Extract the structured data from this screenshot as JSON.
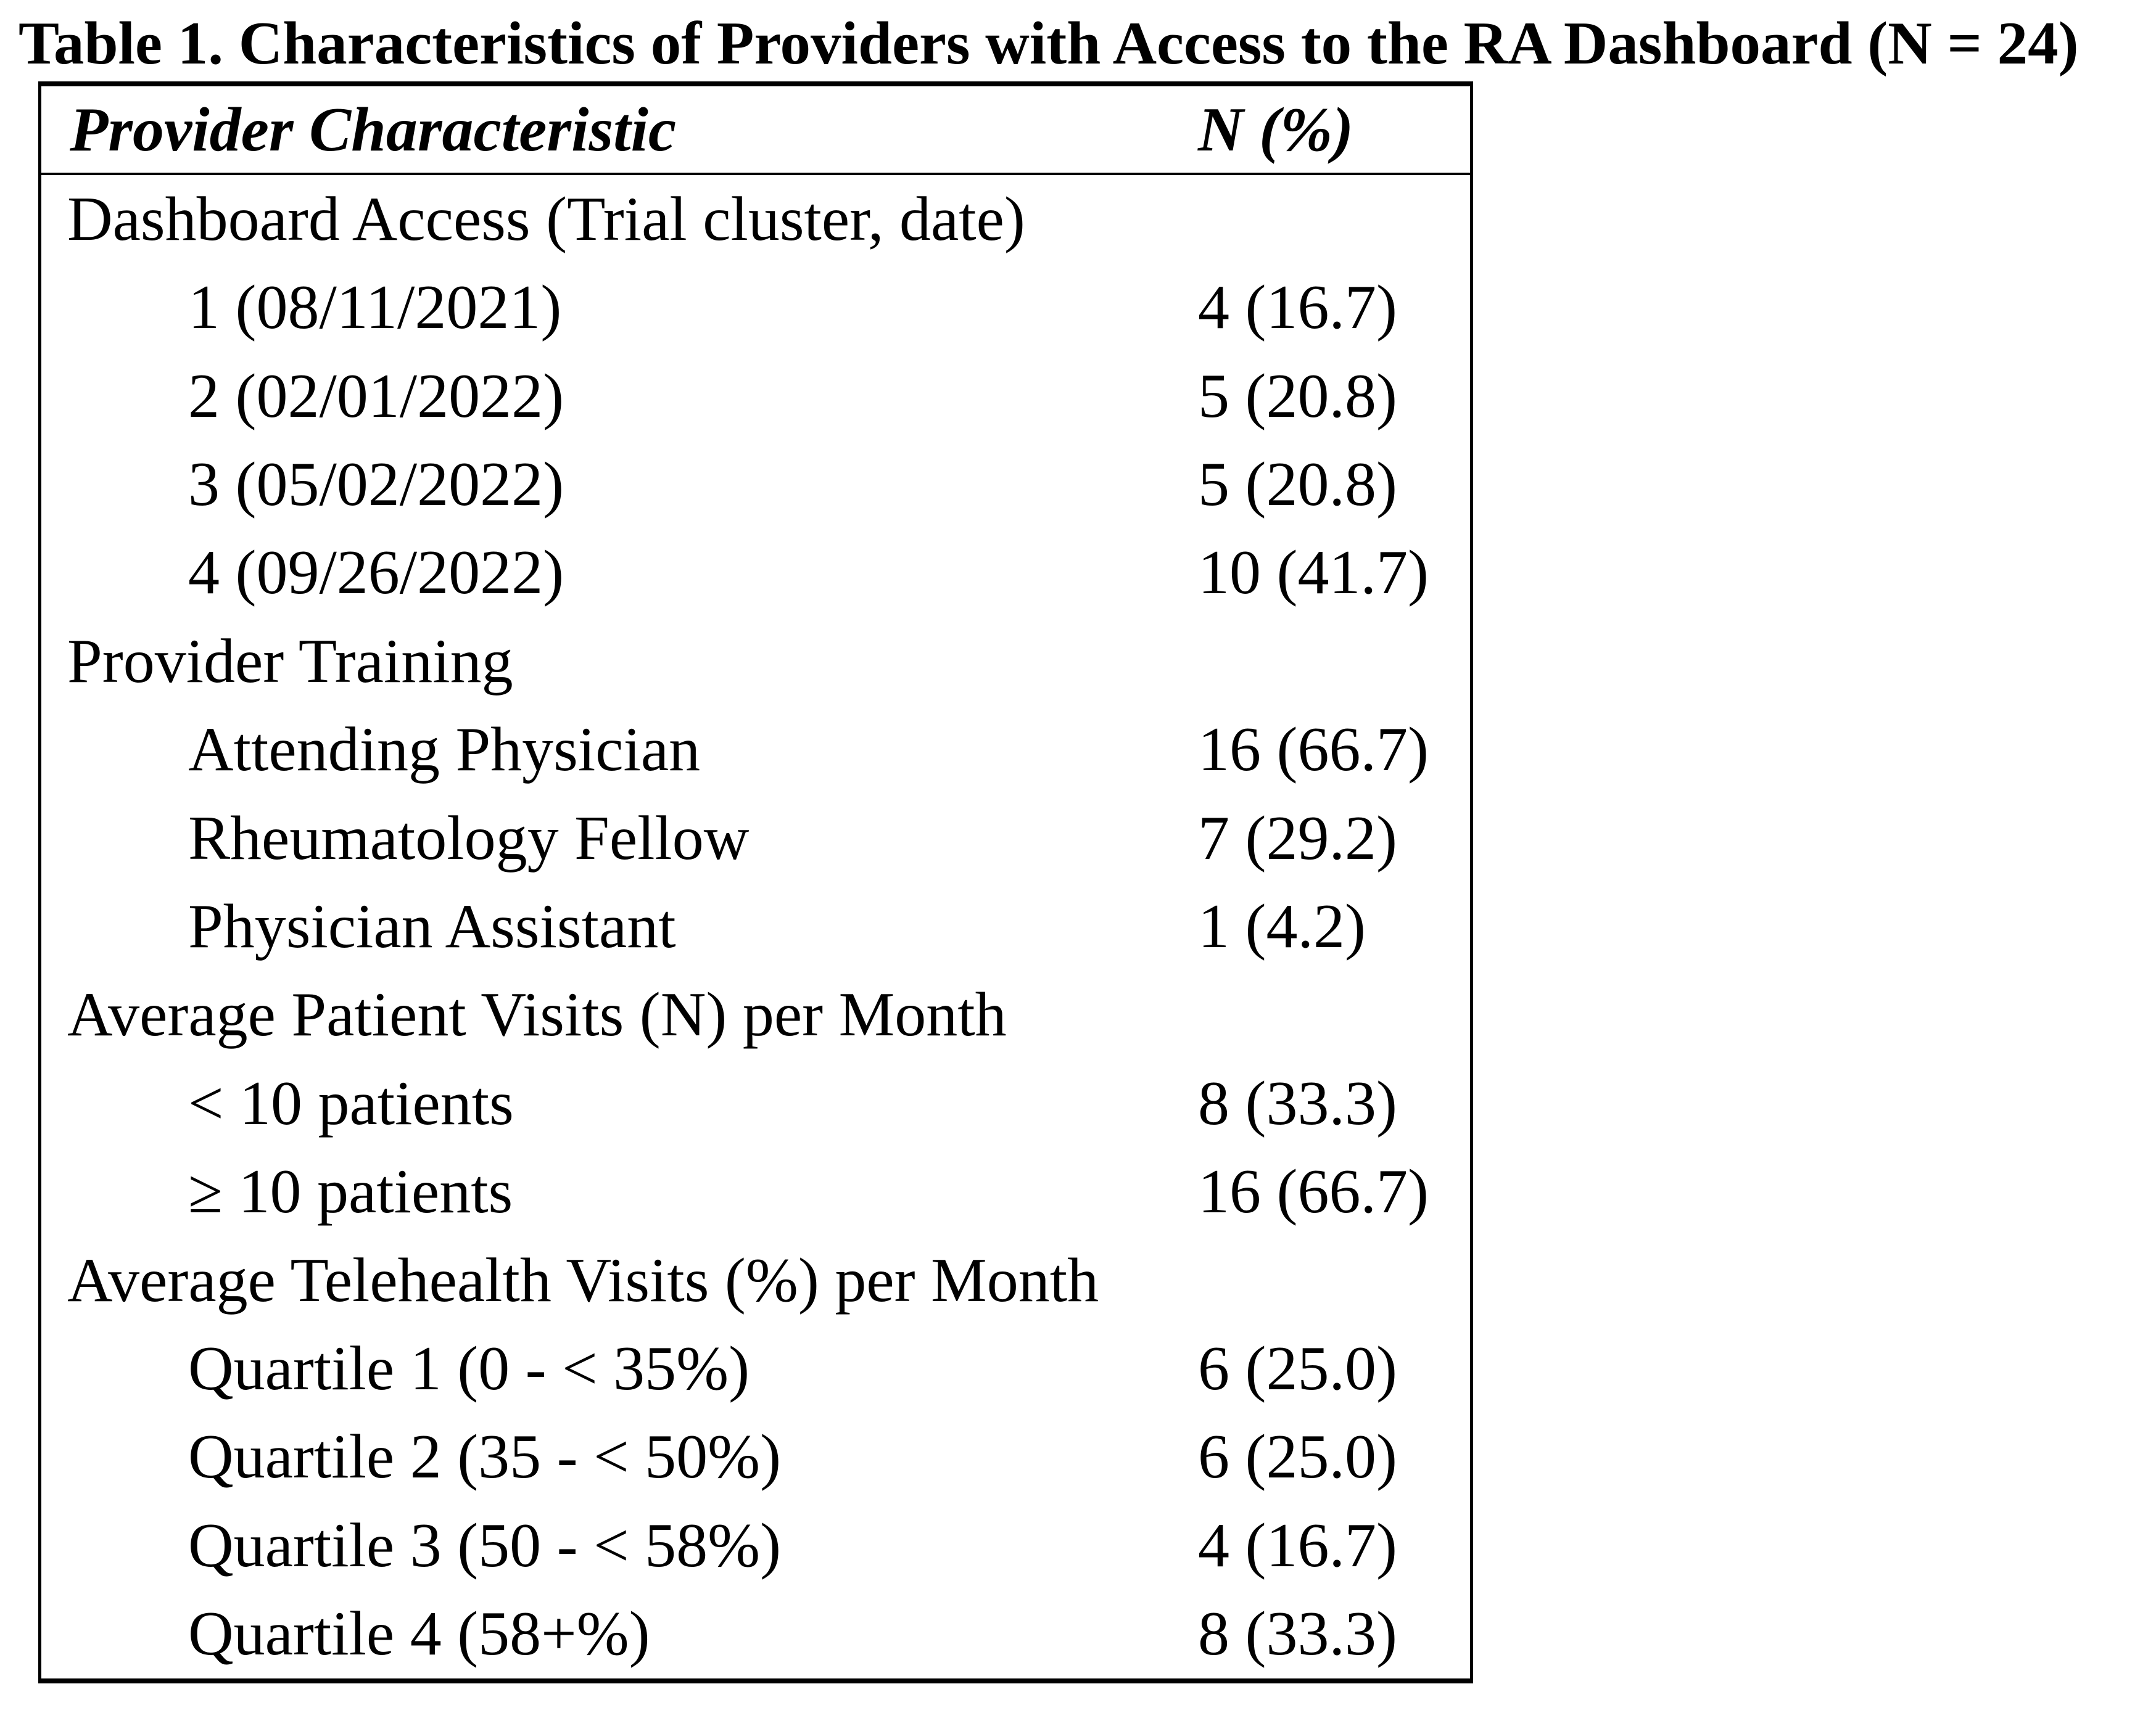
{
  "title": "Table 1. Characteristics of Providers with Access to the RA Dashboard (N = 24)",
  "table": {
    "columns": {
      "characteristic": "Provider Characteristic",
      "n_percent": "N (%)"
    },
    "rows": [
      {
        "label": "Dashboard Access (Trial cluster, date)",
        "value": "",
        "indent": 0
      },
      {
        "label": "1 (08/11/2021)",
        "value": "4 (16.7)",
        "indent": 1
      },
      {
        "label": "2 (02/01/2022)",
        "value": "5 (20.8)",
        "indent": 1
      },
      {
        "label": "3 (05/02/2022)",
        "value": "5 (20.8)",
        "indent": 1
      },
      {
        "label": "4 (09/26/2022)",
        "value": "10 (41.7)",
        "indent": 1
      },
      {
        "label": "Provider Training",
        "value": "",
        "indent": 0
      },
      {
        "label": "Attending Physician",
        "value": "16 (66.7)",
        "indent": 1
      },
      {
        "label": "Rheumatology Fellow",
        "value": "7 (29.2)",
        "indent": 1
      },
      {
        "label": "Physician Assistant",
        "value": "1 (4.2)",
        "indent": 1
      },
      {
        "label": "Average Patient Visits (N) per Month",
        "value": "",
        "indent": 0
      },
      {
        "label": "< 10 patients",
        "value": "8 (33.3)",
        "indent": 1
      },
      {
        "label": "≥ 10 patients",
        "value": "16 (66.7)",
        "indent": 1
      },
      {
        "label": "Average Telehealth Visits (%) per Month",
        "value": "",
        "indent": 0
      },
      {
        "label": "Quartile 1 (0 - < 35%)",
        "value": "6 (25.0)",
        "indent": 1
      },
      {
        "label": "Quartile 2 (35 - < 50%)",
        "value": "6 (25.0)",
        "indent": 1
      },
      {
        "label": "Quartile 3 (50 - < 58%)",
        "value": "4 (16.7)",
        "indent": 1
      },
      {
        "label": "Quartile 4 (58+%)",
        "value": "8 (33.3)",
        "indent": 1
      }
    ]
  },
  "colors": {
    "background": "#ffffff",
    "text": "#000000",
    "border": "#000000"
  }
}
